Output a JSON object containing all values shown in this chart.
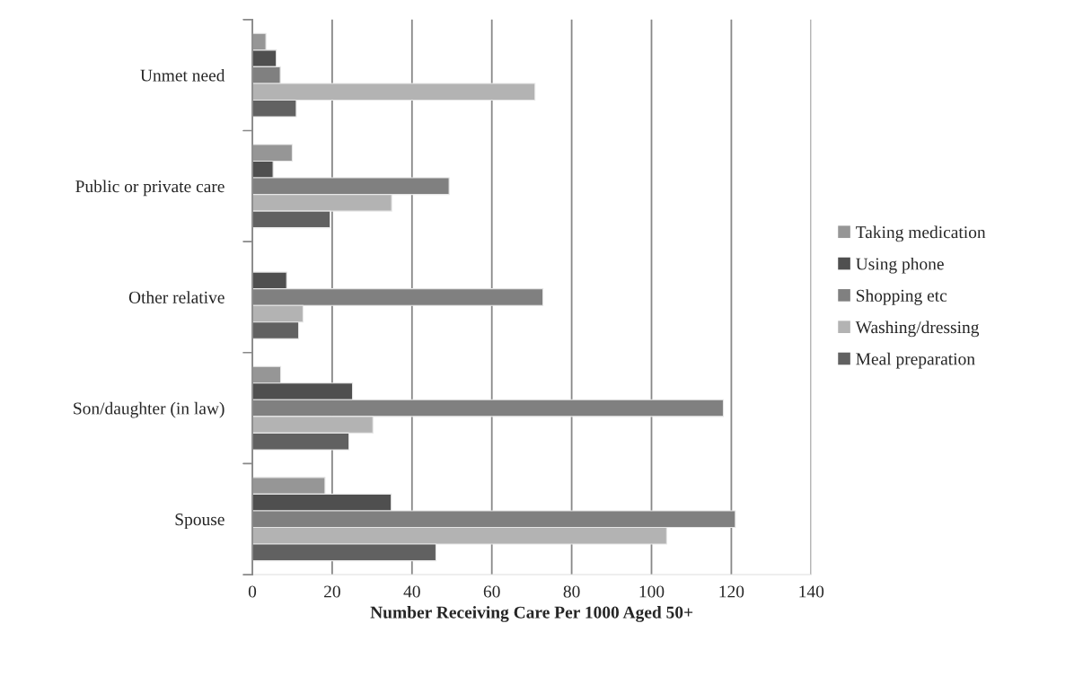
{
  "chart_data": {
    "type": "bar",
    "orientation": "horizontal",
    "xlabel": "Number Receiving Care Per 1000 Aged 50+",
    "categories": [
      "Unmet need",
      "Public or private care",
      "Other relative",
      "Son/daughter (in law)",
      "Spouse"
    ],
    "series": [
      {
        "name": "Taking medication",
        "color": "#969696",
        "values": [
          3.4,
          10.0,
          null,
          7.1,
          18.2
        ]
      },
      {
        "name": "Using phone",
        "color": "#4f4f4f",
        "values": [
          6.0,
          5.2,
          8.6,
          25.1,
          34.8
        ]
      },
      {
        "name": "Shopping etc",
        "color": "#808080",
        "values": [
          7.0,
          49.3,
          72.8,
          118.0,
          121.0
        ]
      },
      {
        "name": "Washing/dressing",
        "color": "#b3b3b3",
        "values": [
          70.8,
          34.9,
          12.7,
          30.2,
          103.8
        ]
      },
      {
        "name": "Meal preparation",
        "color": "#616161",
        "values": [
          11.0,
          19.5,
          11.6,
          24.2,
          46.0
        ]
      }
    ],
    "xlim": [
      0,
      140
    ],
    "xticks": [
      0,
      20,
      40,
      60,
      80,
      100,
      120,
      140
    ],
    "grid": "x",
    "legend": "right"
  }
}
